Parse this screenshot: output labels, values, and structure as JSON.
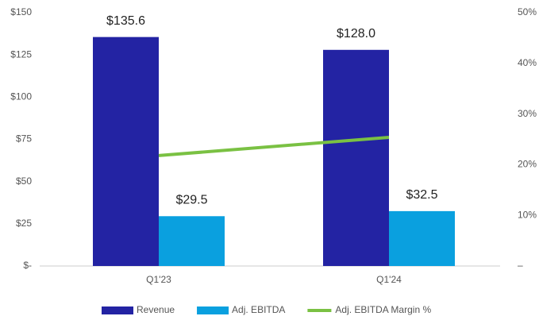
{
  "chart_data": {
    "type": "bar",
    "categories": [
      "Q1'23",
      "Q1'24"
    ],
    "series": [
      {
        "name": "Revenue",
        "color": "#2323a3",
        "values": [
          135.6,
          128.0
        ],
        "value_labels": [
          "$135.6",
          "$128.0"
        ]
      },
      {
        "name": "Adj. EBITDA",
        "color": "#0aa0df",
        "values": [
          29.5,
          32.5
        ],
        "value_labels": [
          "$29.5",
          "$32.5"
        ]
      },
      {
        "name": "Adj. EBITDA Margin %",
        "color": "#7ac143",
        "type": "line",
        "axis": "y2",
        "values": [
          21.8,
          25.4
        ]
      }
    ],
    "ylim": [
      0,
      150
    ],
    "yticks": [
      {
        "value": 0,
        "label": "$-"
      },
      {
        "value": 25,
        "label": "$25"
      },
      {
        "value": 50,
        "label": "$50"
      },
      {
        "value": 75,
        "label": "$75"
      },
      {
        "value": 100,
        "label": "$100"
      },
      {
        "value": 125,
        "label": "$125"
      },
      {
        "value": 150,
        "label": "$150"
      }
    ],
    "y2lim": [
      0,
      50
    ],
    "y2ticks": [
      {
        "value": 0,
        "label": "–"
      },
      {
        "value": 10,
        "label": "10%"
      },
      {
        "value": 20,
        "label": "20%"
      },
      {
        "value": 30,
        "label": "30%"
      },
      {
        "value": 40,
        "label": "40%"
      },
      {
        "value": 50,
        "label": "50%"
      }
    ],
    "grid": false,
    "legend": "bottom"
  }
}
